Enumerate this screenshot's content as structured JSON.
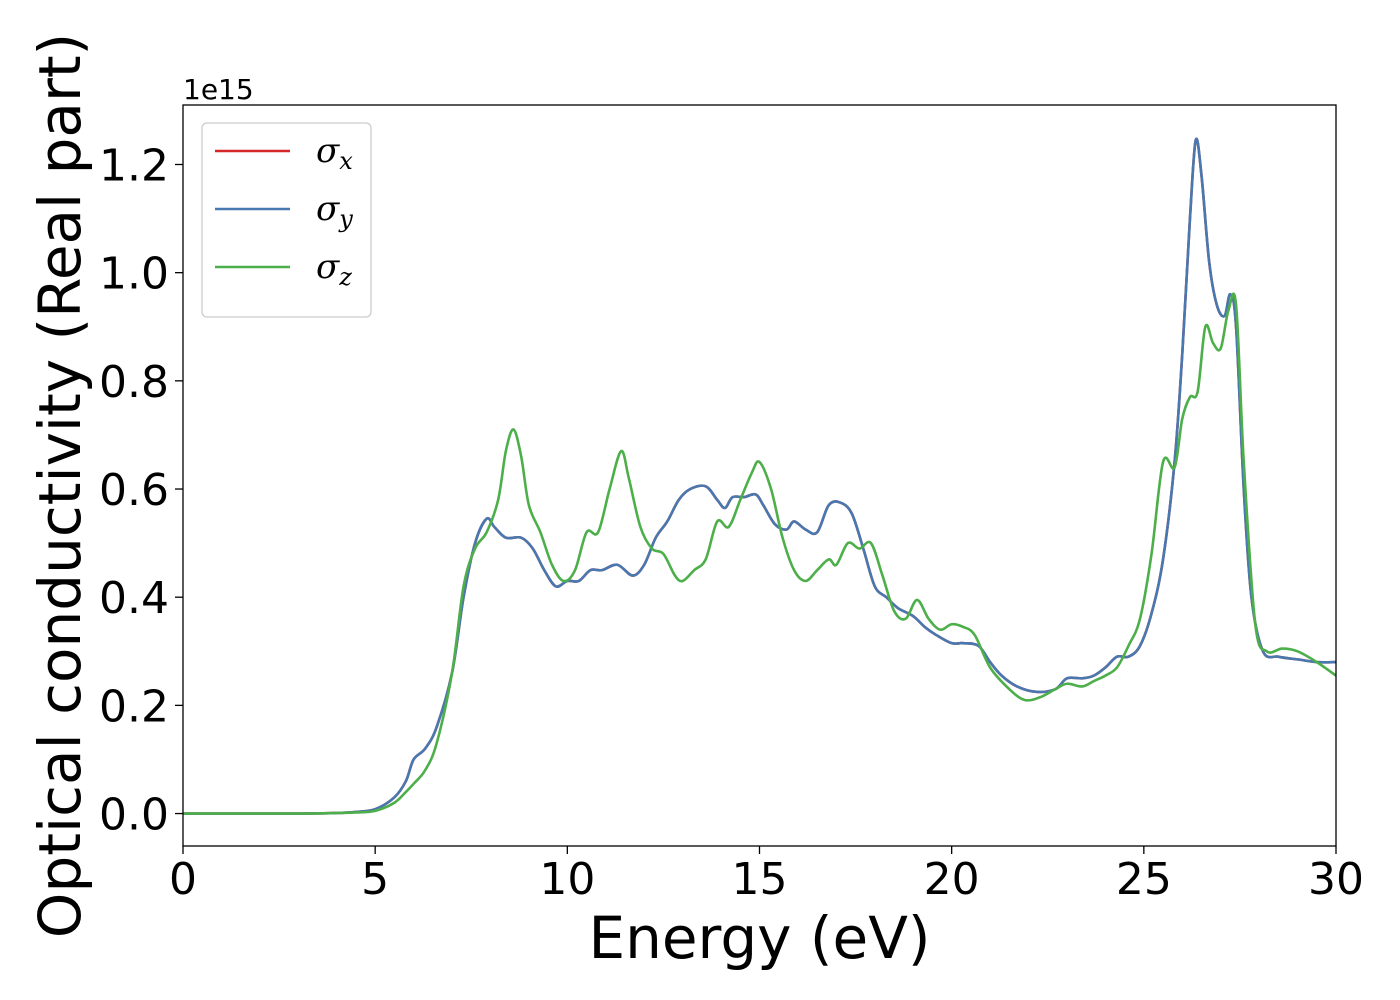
{
  "chart_data": {
    "type": "line",
    "xlabel": "Energy (eV)",
    "ylabel": "Optical conductivity (Real part)",
    "y_offset_text": "1e15",
    "xlim": [
      0,
      30
    ],
    "ylim": [
      -0.06,
      1.31
    ],
    "xticks": [
      0,
      5,
      10,
      15,
      20,
      25,
      30
    ],
    "xtick_labels": [
      "0",
      "5",
      "10",
      "15",
      "20",
      "25",
      "30"
    ],
    "yticks": [
      0.0,
      0.2,
      0.4,
      0.6,
      0.8,
      1.0,
      1.2
    ],
    "ytick_labels": [
      "0.0",
      "0.2",
      "0.4",
      "0.6",
      "0.8",
      "1.0",
      "1.2"
    ],
    "grid": false,
    "legend_position": "top-left",
    "series": [
      {
        "name": "σx",
        "symbol": "σ",
        "subscript": "x",
        "color": "#d62728",
        "x": [
          0,
          3,
          4,
          4.5,
          5,
          5.5,
          5.8,
          6,
          6.3,
          6.6,
          7,
          7.3,
          7.6,
          7.9,
          8.1,
          8.4,
          8.8,
          9.1,
          9.4,
          9.7,
          10,
          10.3,
          10.6,
          10.9,
          11.3,
          11.7,
          12,
          12.3,
          12.6,
          12.9,
          13.2,
          13.6,
          13.9,
          14.1,
          14.3,
          14.6,
          14.9,
          15.1,
          15.4,
          15.7,
          15.9,
          16.2,
          16.5,
          16.8,
          17.1,
          17.4,
          17.7,
          18,
          18.3,
          18.6,
          19,
          19.3,
          19.6,
          20,
          20.3,
          20.7,
          21,
          21.3,
          21.7,
          22.2,
          22.7,
          23,
          23.4,
          23.7,
          24,
          24.3,
          24.6,
          24.9,
          25.2,
          25.5,
          25.8,
          26,
          26.2,
          26.35,
          26.5,
          26.7,
          26.9,
          27.1,
          27.25,
          27.4,
          27.6,
          27.8,
          28.1,
          28.5,
          29,
          29.5,
          30
        ],
        "y": [
          0,
          0,
          0.001,
          0.003,
          0.008,
          0.03,
          0.06,
          0.1,
          0.12,
          0.16,
          0.26,
          0.4,
          0.5,
          0.545,
          0.53,
          0.51,
          0.51,
          0.49,
          0.45,
          0.42,
          0.43,
          0.43,
          0.45,
          0.45,
          0.46,
          0.44,
          0.46,
          0.51,
          0.54,
          0.58,
          0.6,
          0.605,
          0.58,
          0.565,
          0.585,
          0.585,
          0.59,
          0.57,
          0.535,
          0.525,
          0.54,
          0.525,
          0.52,
          0.57,
          0.575,
          0.555,
          0.49,
          0.42,
          0.4,
          0.38,
          0.365,
          0.345,
          0.33,
          0.315,
          0.315,
          0.31,
          0.28,
          0.255,
          0.235,
          0.225,
          0.23,
          0.25,
          0.25,
          0.255,
          0.27,
          0.29,
          0.29,
          0.31,
          0.37,
          0.47,
          0.65,
          0.85,
          1.1,
          1.245,
          1.18,
          1.02,
          0.94,
          0.92,
          0.96,
          0.9,
          0.6,
          0.4,
          0.3,
          0.29,
          0.285,
          0.28,
          0.28
        ]
      },
      {
        "name": "σy",
        "symbol": "σ",
        "subscript": "y",
        "color": "#4878b0",
        "x": [
          0,
          3,
          4,
          4.5,
          5,
          5.5,
          5.8,
          6,
          6.3,
          6.6,
          7,
          7.3,
          7.6,
          7.9,
          8.1,
          8.4,
          8.8,
          9.1,
          9.4,
          9.7,
          10,
          10.3,
          10.6,
          10.9,
          11.3,
          11.7,
          12,
          12.3,
          12.6,
          12.9,
          13.2,
          13.6,
          13.9,
          14.1,
          14.3,
          14.6,
          14.9,
          15.1,
          15.4,
          15.7,
          15.9,
          16.2,
          16.5,
          16.8,
          17.1,
          17.4,
          17.7,
          18,
          18.3,
          18.6,
          19,
          19.3,
          19.6,
          20,
          20.3,
          20.7,
          21,
          21.3,
          21.7,
          22.2,
          22.7,
          23,
          23.4,
          23.7,
          24,
          24.3,
          24.6,
          24.9,
          25.2,
          25.5,
          25.8,
          26,
          26.2,
          26.35,
          26.5,
          26.7,
          26.9,
          27.1,
          27.25,
          27.4,
          27.6,
          27.8,
          28.1,
          28.5,
          29,
          29.5,
          30
        ],
        "y": [
          0,
          0,
          0.001,
          0.003,
          0.008,
          0.03,
          0.06,
          0.1,
          0.12,
          0.16,
          0.26,
          0.4,
          0.5,
          0.545,
          0.53,
          0.51,
          0.51,
          0.49,
          0.45,
          0.42,
          0.43,
          0.43,
          0.45,
          0.45,
          0.46,
          0.44,
          0.46,
          0.51,
          0.54,
          0.58,
          0.6,
          0.605,
          0.58,
          0.565,
          0.585,
          0.585,
          0.59,
          0.57,
          0.535,
          0.525,
          0.54,
          0.525,
          0.52,
          0.57,
          0.575,
          0.555,
          0.49,
          0.42,
          0.4,
          0.38,
          0.365,
          0.345,
          0.33,
          0.315,
          0.315,
          0.31,
          0.28,
          0.255,
          0.235,
          0.225,
          0.23,
          0.25,
          0.25,
          0.255,
          0.27,
          0.29,
          0.29,
          0.31,
          0.37,
          0.47,
          0.65,
          0.85,
          1.1,
          1.245,
          1.18,
          1.02,
          0.94,
          0.92,
          0.96,
          0.9,
          0.6,
          0.4,
          0.3,
          0.29,
          0.285,
          0.28,
          0.28
        ]
      },
      {
        "name": "σz",
        "symbol": "σ",
        "subscript": "z",
        "color": "#4daf4a",
        "x": [
          0,
          3,
          4,
          4.5,
          5,
          5.5,
          5.8,
          6,
          6.3,
          6.6,
          7,
          7.3,
          7.6,
          7.9,
          8.2,
          8.4,
          8.6,
          8.8,
          9.0,
          9.3,
          9.6,
          9.9,
          10.2,
          10.5,
          10.8,
          11.1,
          11.4,
          11.6,
          11.9,
          12.2,
          12.5,
          12.8,
          13.0,
          13.3,
          13.6,
          13.9,
          14.2,
          14.5,
          14.8,
          15.0,
          15.3,
          15.6,
          15.9,
          16.2,
          16.5,
          16.8,
          17.0,
          17.3,
          17.6,
          17.9,
          18.2,
          18.5,
          18.8,
          19.1,
          19.4,
          19.7,
          20.0,
          20.3,
          20.6,
          21.0,
          21.5,
          21.9,
          22.3,
          22.7,
          23.0,
          23.4,
          23.7,
          24.0,
          24.3,
          24.6,
          24.9,
          25.2,
          25.5,
          25.8,
          26.0,
          26.2,
          26.4,
          26.6,
          26.8,
          27.0,
          27.2,
          27.4,
          27.6,
          27.9,
          28.2,
          28.6,
          29.0,
          29.5,
          30
        ],
        "y": [
          0,
          0,
          0.001,
          0.002,
          0.005,
          0.02,
          0.04,
          0.055,
          0.08,
          0.13,
          0.26,
          0.42,
          0.49,
          0.52,
          0.58,
          0.67,
          0.71,
          0.66,
          0.57,
          0.52,
          0.46,
          0.43,
          0.45,
          0.52,
          0.52,
          0.6,
          0.67,
          0.62,
          0.53,
          0.49,
          0.48,
          0.44,
          0.43,
          0.45,
          0.47,
          0.54,
          0.53,
          0.58,
          0.63,
          0.65,
          0.6,
          0.51,
          0.45,
          0.43,
          0.45,
          0.47,
          0.46,
          0.5,
          0.49,
          0.5,
          0.44,
          0.375,
          0.36,
          0.395,
          0.36,
          0.34,
          0.35,
          0.345,
          0.33,
          0.27,
          0.23,
          0.21,
          0.215,
          0.23,
          0.24,
          0.235,
          0.245,
          0.255,
          0.27,
          0.31,
          0.36,
          0.48,
          0.65,
          0.64,
          0.73,
          0.77,
          0.78,
          0.9,
          0.87,
          0.86,
          0.93,
          0.94,
          0.65,
          0.35,
          0.3,
          0.305,
          0.3,
          0.28,
          0.255
        ]
      }
    ]
  }
}
